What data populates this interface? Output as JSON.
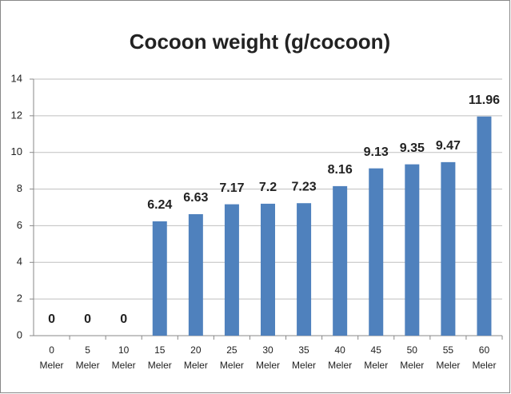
{
  "chart_data": {
    "type": "bar",
    "title": "Cocoon weight (g/cocoon)",
    "categories": [
      "0 Meler",
      "5 Meler",
      "10 Meler",
      "15 Meler",
      "20 Meler",
      "25 Meler",
      "30 Meler",
      "35 Meler",
      "40 Meler",
      "45 Meler",
      "50 Meler",
      "55 Meler",
      "60 Meler"
    ],
    "values": [
      0,
      0,
      0,
      6.24,
      6.63,
      7.17,
      7.2,
      7.23,
      8.16,
      9.13,
      9.35,
      9.47,
      11.96
    ],
    "color": "#4f81bd",
    "ylim": [
      0,
      14
    ],
    "yticks": [
      0,
      2,
      4,
      6,
      8,
      10,
      12,
      14
    ],
    "grid": true
  }
}
